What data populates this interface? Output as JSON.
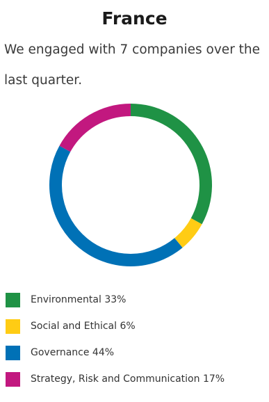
{
  "page": {
    "title": "France",
    "intro": "We engaged with 7 companies over the last quarter."
  },
  "chart_data": {
    "type": "pie",
    "style": "donut",
    "title": "",
    "categories": [
      "Environmental",
      "Social and Ethical",
      "Governance",
      "Strategy, Risk and Communication"
    ],
    "values": [
      33,
      6,
      44,
      17
    ],
    "unit": "%",
    "colors": [
      "#1f9245",
      "#ffcc14",
      "#0071b6",
      "#c2187f"
    ],
    "legend": {
      "placement": "bottom",
      "entries": [
        {
          "label": "Environmental 33%",
          "color": "#1f9245"
        },
        {
          "label": "Social and Ethical 6%",
          "color": "#ffcc14"
        },
        {
          "label": "Governance 44%",
          "color": "#0071b6"
        },
        {
          "label": "Strategy, Risk and Communication 17%",
          "color": "#c2187f"
        }
      ]
    }
  }
}
